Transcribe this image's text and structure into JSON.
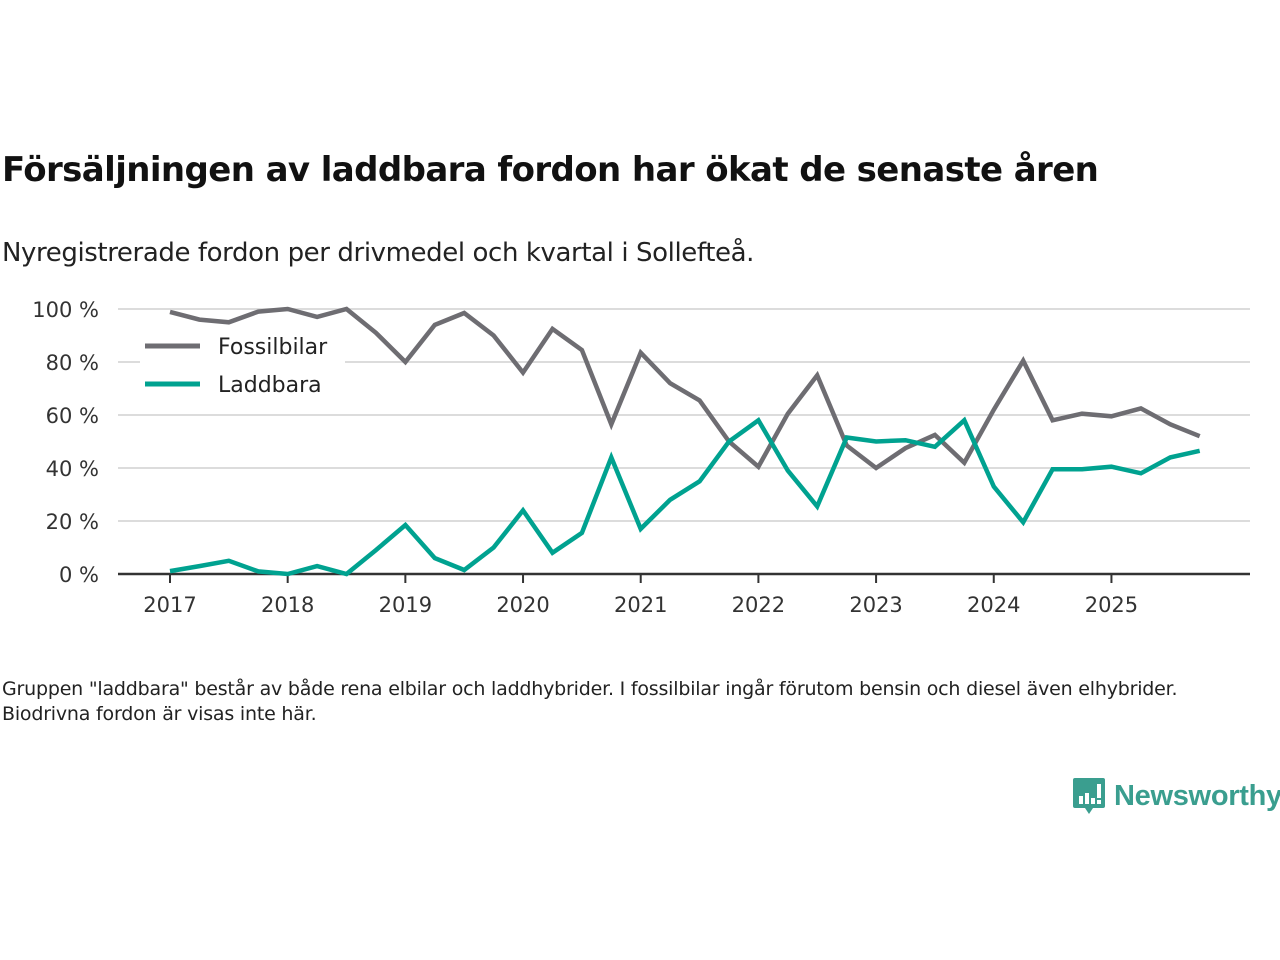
{
  "title": "Försäljningen av laddbara fordon har ökat de senaste åren",
  "subtitle": "Nyregistrerade fordon per drivmedel och kvartal i Sollefteå.",
  "footnote": "Gruppen \"laddbara\" består av både rena elbilar och laddhybrider. I fossilbilar ingår förutom bensin och diesel även elhybrider. Biodrivna fordon är visas inte här.",
  "brand": {
    "name": "Newsworthy",
    "color": "#3a9e8f",
    "icon": "bar-chart-speech-bubble-icon"
  },
  "chart_data": {
    "type": "line",
    "title": "Försäljningen av laddbara fordon har ökat de senaste åren",
    "subtitle": "Nyregistrerade fordon per drivmedel och kvartal i Sollefteå.",
    "xlabel": "",
    "ylabel": "",
    "x_unit": "quarter",
    "x": [
      "2017Q1",
      "2017Q2",
      "2017Q3",
      "2017Q4",
      "2018Q1",
      "2018Q2",
      "2018Q3",
      "2018Q4",
      "2019Q1",
      "2019Q2",
      "2019Q3",
      "2019Q4",
      "2020Q1",
      "2020Q2",
      "2020Q3",
      "2020Q4",
      "2021Q1",
      "2021Q2",
      "2021Q3",
      "2021Q4",
      "2022Q1",
      "2022Q2",
      "2022Q3",
      "2022Q4",
      "2023Q1",
      "2023Q2",
      "2023Q3",
      "2023Q4",
      "2024Q1",
      "2024Q2",
      "2024Q3",
      "2024Q4",
      "2025Q1",
      "2025Q2",
      "2025Q3",
      "2025Q4"
    ],
    "x_ticks": [
      "2017",
      "2018",
      "2019",
      "2020",
      "2021",
      "2022",
      "2023",
      "2024",
      "2025"
    ],
    "ylim": [
      0,
      100
    ],
    "y_ticks": [
      0,
      20,
      40,
      60,
      80,
      100
    ],
    "y_tick_labels": [
      "0 %",
      "20 %",
      "40 %",
      "60 %",
      "80 %",
      "100 %"
    ],
    "grid": true,
    "legend_position": "top-left",
    "series": [
      {
        "name": "Fossilbilar",
        "color": "#6e6d72",
        "values": [
          98.9,
          96,
          95,
          99,
          100,
          97,
          100,
          91,
          80,
          94,
          98.5,
          90,
          76,
          92.5,
          84.5,
          56.5,
          83.5,
          72,
          65.5,
          50,
          40.5,
          60.5,
          75,
          48.5,
          40,
          47.5,
          52.5,
          42,
          62,
          80.5,
          58,
          60.5,
          59.5,
          62.5,
          56.5,
          52
        ]
      },
      {
        "name": "Laddbara",
        "color": "#00a290",
        "values": [
          1.1,
          3,
          5,
          1,
          0,
          3,
          0,
          9,
          18.5,
          6,
          1.5,
          10,
          24,
          8,
          15.5,
          44,
          17,
          28,
          35,
          50,
          58,
          39,
          25.5,
          51.5,
          50,
          50.5,
          48,
          58,
          33,
          19.5,
          39.5,
          39.5,
          40.5,
          38,
          44,
          46.5
        ]
      }
    ]
  }
}
